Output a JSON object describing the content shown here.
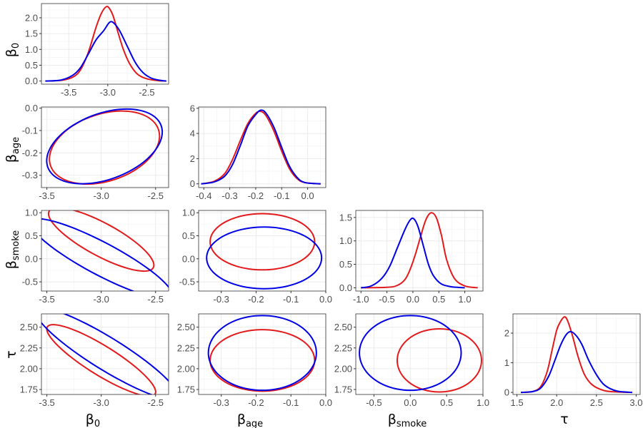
{
  "series_colors": {
    "red": "#e31a1c",
    "blue": "#0000e6"
  },
  "variables": [
    {
      "id": "b0",
      "label": "β",
      "sub": "0"
    },
    {
      "id": "bage",
      "label": "β",
      "sub": "age"
    },
    {
      "id": "bsmoke",
      "label": "β",
      "sub": "smoke"
    },
    {
      "id": "tau",
      "label": "τ",
      "sub": ""
    }
  ],
  "chart_data": [
    {
      "type": "line",
      "panel": "density-b0",
      "row": 0,
      "col": 0,
      "xlim": [
        -3.85,
        -2.22
      ],
      "ylim": [
        -0.1,
        2.45
      ],
      "xticks": [
        -3.5,
        -3.0,
        -2.5
      ],
      "xtick_labels": [
        "-3.5",
        "-3.0",
        "-2.5"
      ],
      "yticks": [
        0.0,
        0.5,
        1.0,
        1.5,
        2.0
      ],
      "ytick_labels": [
        "0.0",
        "0.5",
        "1.0",
        "1.5",
        "2.0"
      ],
      "series": [
        {
          "color": "red",
          "x": [
            -3.8,
            -3.6,
            -3.45,
            -3.35,
            -3.25,
            -3.15,
            -3.08,
            -3.02,
            -2.98,
            -2.93,
            -2.87,
            -2.8,
            -2.72,
            -2.62,
            -2.5,
            -2.35,
            -2.25
          ],
          "y": [
            0.0,
            0.02,
            0.12,
            0.35,
            0.9,
            1.7,
            2.15,
            2.35,
            2.3,
            2.05,
            1.55,
            1.0,
            0.55,
            0.22,
            0.07,
            0.01,
            0.0
          ]
        },
        {
          "color": "blue",
          "x": [
            -3.8,
            -3.6,
            -3.45,
            -3.35,
            -3.25,
            -3.15,
            -3.05,
            -2.98,
            -2.93,
            -2.85,
            -2.75,
            -2.65,
            -2.55,
            -2.45,
            -2.35,
            -2.25
          ],
          "y": [
            0.0,
            0.03,
            0.18,
            0.42,
            0.85,
            1.3,
            1.6,
            1.85,
            1.85,
            1.6,
            1.1,
            0.6,
            0.27,
            0.1,
            0.03,
            0.0
          ]
        }
      ]
    },
    {
      "type": "line",
      "panel": "density-bage",
      "row": 1,
      "col": 1,
      "xlim": [
        -0.42,
        0.07
      ],
      "ylim": [
        -0.3,
        6.1
      ],
      "xticks": [
        -0.4,
        -0.3,
        -0.2,
        -0.1,
        0.0
      ],
      "xtick_labels": [
        "-0.4",
        "-0.3",
        "-0.2",
        "-0.1",
        "0.0"
      ],
      "yticks": [
        0,
        2,
        4,
        6
      ],
      "ytick_labels": [
        "0",
        "2",
        "4",
        "6"
      ],
      "series": [
        {
          "color": "red",
          "x": [
            -0.41,
            -0.36,
            -0.32,
            -0.29,
            -0.26,
            -0.23,
            -0.2,
            -0.18,
            -0.16,
            -0.13,
            -0.1,
            -0.07,
            -0.04,
            -0.01,
            0.05
          ],
          "y": [
            0.0,
            0.2,
            0.8,
            1.9,
            3.4,
            4.8,
            5.6,
            5.75,
            5.4,
            4.2,
            2.6,
            1.2,
            0.4,
            0.1,
            0.0
          ]
        },
        {
          "color": "blue",
          "x": [
            -0.41,
            -0.36,
            -0.32,
            -0.29,
            -0.26,
            -0.23,
            -0.2,
            -0.18,
            -0.16,
            -0.13,
            -0.1,
            -0.07,
            -0.04,
            -0.01,
            0.05
          ],
          "y": [
            0.0,
            0.15,
            0.6,
            1.5,
            3.0,
            4.6,
            5.5,
            5.85,
            5.6,
            4.5,
            2.9,
            1.4,
            0.5,
            0.1,
            0.0
          ]
        }
      ]
    },
    {
      "type": "line",
      "panel": "density-bsmoke",
      "row": 2,
      "col": 2,
      "xlim": [
        -1.1,
        1.35
      ],
      "ylim": [
        -0.07,
        1.65
      ],
      "xticks": [
        -1.0,
        -0.5,
        0.0,
        0.5,
        1.0
      ],
      "xtick_labels": [
        "-1.0",
        "-0.5",
        "0.0",
        "0.5",
        "1.0"
      ],
      "yticks": [
        0.0,
        0.5,
        1.0,
        1.5
      ],
      "ytick_labels": [
        "0.0",
        "0.5",
        "1.0",
        "1.5"
      ],
      "series": [
        {
          "color": "red",
          "x": [
            -1.0,
            -0.5,
            -0.3,
            -0.15,
            -0.05,
            0.05,
            0.15,
            0.25,
            0.35,
            0.45,
            0.55,
            0.65,
            0.8,
            1.0,
            1.25
          ],
          "y": [
            0.0,
            0.01,
            0.05,
            0.18,
            0.4,
            0.72,
            1.1,
            1.45,
            1.6,
            1.5,
            1.12,
            0.6,
            0.2,
            0.04,
            0.0
          ]
        },
        {
          "color": "blue",
          "x": [
            -1.0,
            -0.8,
            -0.6,
            -0.45,
            -0.3,
            -0.15,
            -0.05,
            0.02,
            0.1,
            0.2,
            0.3,
            0.4,
            0.55,
            0.75,
            1.0
          ],
          "y": [
            0.0,
            0.04,
            0.2,
            0.45,
            0.85,
            1.25,
            1.45,
            1.47,
            1.3,
            0.9,
            0.5,
            0.25,
            0.08,
            0.02,
            0.0
          ]
        }
      ]
    },
    {
      "type": "line",
      "panel": "density-tau",
      "row": 3,
      "col": 3,
      "xlim": [
        1.45,
        3.05
      ],
      "ylim": [
        -0.07,
        2.65
      ],
      "xticks": [
        1.5,
        2.0,
        2.5,
        3.0
      ],
      "xtick_labels": [
        "1.5",
        "2.0",
        "2.5",
        "3.0"
      ],
      "yticks": [
        0,
        1,
        2
      ],
      "ytick_labels": [
        "0",
        "1",
        "2"
      ],
      "series": [
        {
          "color": "red",
          "x": [
            1.55,
            1.7,
            1.8,
            1.88,
            1.94,
            2.0,
            2.05,
            2.1,
            2.14,
            2.2,
            2.27,
            2.35,
            2.45,
            2.6,
            2.8,
            2.95
          ],
          "y": [
            0.0,
            0.03,
            0.2,
            0.7,
            1.4,
            2.1,
            2.4,
            2.55,
            2.4,
            1.9,
            1.2,
            0.6,
            0.25,
            0.06,
            0.01,
            0.0
          ]
        },
        {
          "color": "blue",
          "x": [
            1.55,
            1.7,
            1.8,
            1.9,
            1.98,
            2.05,
            2.12,
            2.18,
            2.25,
            2.32,
            2.4,
            2.5,
            2.6,
            2.75,
            2.95
          ],
          "y": [
            0.0,
            0.03,
            0.15,
            0.55,
            1.1,
            1.6,
            1.95,
            2.05,
            1.9,
            1.6,
            1.1,
            0.6,
            0.25,
            0.05,
            0.0
          ]
        }
      ]
    },
    {
      "type": "scatter",
      "panel": "contour-bage-b0",
      "row": 1,
      "col": 0,
      "xlim": [
        -3.55,
        -2.38
      ],
      "ylim": [
        -0.355,
        0.005
      ],
      "xticks": [
        -3.5,
        -3.0,
        -2.5
      ],
      "xtick_labels": [
        "-3.5",
        "-3.0",
        "-2.5"
      ],
      "yticks": [
        -0.3,
        -0.2,
        -0.1,
        0.0
      ],
      "ytick_labels": [
        "-0.3",
        "-0.2",
        "-0.1",
        "0.0"
      ],
      "ellipses": [
        {
          "color": "red",
          "center": [
            -2.97,
            -0.176
          ],
          "points": [
            [
              -2.47,
              -0.15
            ],
            [
              -2.89,
              -0.015
            ],
            [
              -3.47,
              -0.202
            ],
            [
              -3.05,
              -0.337
            ]
          ]
        },
        {
          "color": "blue",
          "center": [
            -2.97,
            -0.171
          ],
          "points": [
            [
              -2.45,
              -0.14
            ],
            [
              -2.86,
              -0.007
            ],
            [
              -3.49,
              -0.202
            ],
            [
              -3.08,
              -0.335
            ]
          ]
        }
      ]
    },
    {
      "type": "scatter",
      "panel": "contour-bsmoke-b0",
      "row": 2,
      "col": 0,
      "xlim": [
        -3.55,
        -2.38
      ],
      "ylim": [
        -0.7,
        1.05
      ],
      "xticks": [
        -3.5,
        -3.0,
        -2.5
      ],
      "xtick_labels": [
        "-3.5",
        "-3.0",
        "-2.5"
      ],
      "yticks": [
        -0.5,
        0.0,
        0.5,
        1.0
      ],
      "ytick_labels": [
        "-0.5",
        "0.0",
        "0.5",
        "1.0"
      ],
      "ellipses": [
        {
          "color": "red",
          "center": [
            -3.0,
            0.42
          ],
          "points": [
            [
              -2.55,
              0.05
            ],
            [
              -3.18,
              1.0
            ],
            [
              -3.45,
              0.79
            ],
            [
              -2.82,
              -0.16
            ]
          ]
        },
        {
          "color": "blue",
          "center": [
            -3.0,
            0.0
          ],
          "points": [
            [
              -2.45,
              -0.44
            ],
            [
              -3.35,
              0.75
            ],
            [
              -3.55,
              0.44
            ],
            [
              -2.65,
              -0.75
            ]
          ]
        }
      ]
    },
    {
      "type": "scatter",
      "panel": "contour-bsmoke-bage",
      "row": 2,
      "col": 1,
      "xlim": [
        -0.365,
        0.0
      ],
      "ylim": [
        -0.7,
        1.05
      ],
      "xticks": [
        -0.3,
        -0.2,
        -0.1,
        0.0
      ],
      "xtick_labels": [
        "-0.3",
        "-0.2",
        "-0.1",
        "0.0"
      ],
      "yticks": [
        -0.5,
        0.0,
        0.5,
        1.0
      ],
      "ytick_labels": [
        "-0.5",
        "0.0",
        "0.5",
        "1.0"
      ],
      "ellipses": [
        {
          "color": "red",
          "center": [
            -0.182,
            0.37
          ],
          "points": [
            [
              -0.032,
              0.37
            ],
            [
              -0.182,
              0.98
            ],
            [
              -0.332,
              0.37
            ],
            [
              -0.182,
              -0.24
            ]
          ]
        },
        {
          "color": "blue",
          "center": [
            -0.177,
            0.02
          ],
          "points": [
            [
              -0.012,
              0.02
            ],
            [
              -0.177,
              0.69
            ],
            [
              -0.342,
              0.02
            ],
            [
              -0.177,
              -0.65
            ]
          ]
        }
      ]
    },
    {
      "type": "scatter",
      "panel": "contour-tau-b0",
      "row": 3,
      "col": 0,
      "xlim": [
        -3.55,
        -2.38
      ],
      "ylim": [
        1.69,
        2.66
      ],
      "xticks": [
        -3.5,
        -3.0,
        -2.5
      ],
      "xtick_labels": [
        "-3.5",
        "-3.0",
        "-2.5"
      ],
      "yticks": [
        1.75,
        2.0,
        2.25,
        2.5
      ],
      "ytick_labels": [
        "1.75",
        "2.00",
        "2.25",
        "2.50"
      ],
      "ellipses": [
        {
          "color": "red",
          "center": [
            -3.0,
            2.1
          ],
          "points": [
            [
              -2.55,
              1.85
            ],
            [
              -3.22,
              2.45
            ],
            [
              -3.45,
              2.35
            ],
            [
              -2.78,
              1.75
            ]
          ]
        },
        {
          "color": "blue",
          "center": [
            -2.95,
            2.18
          ],
          "points": [
            [
              -2.4,
              1.88
            ],
            [
              -3.3,
              2.64
            ],
            [
              -3.5,
              2.48
            ],
            [
              -2.6,
              1.72
            ]
          ]
        }
      ]
    },
    {
      "type": "scatter",
      "panel": "contour-tau-bage",
      "row": 3,
      "col": 1,
      "xlim": [
        -0.365,
        0.0
      ],
      "ylim": [
        1.69,
        2.66
      ],
      "xticks": [
        -0.3,
        -0.2,
        -0.1,
        0.0
      ],
      "xtick_labels": [
        "-0.3",
        "-0.2",
        "-0.1",
        "0.0"
      ],
      "yticks": [
        1.75,
        2.0,
        2.25,
        2.5
      ],
      "ytick_labels": [
        "1.75",
        "2.00",
        "2.25",
        "2.50"
      ],
      "ellipses": [
        {
          "color": "red",
          "center": [
            -0.182,
            2.1
          ],
          "points": [
            [
              -0.032,
              2.1
            ],
            [
              -0.182,
              2.47
            ],
            [
              -0.332,
              2.1
            ],
            [
              -0.182,
              1.73
            ]
          ]
        },
        {
          "color": "blue",
          "center": [
            -0.182,
            2.19
          ],
          "points": [
            [
              -0.027,
              2.19
            ],
            [
              -0.182,
              2.64
            ],
            [
              -0.337,
              2.19
            ],
            [
              -0.182,
              1.74
            ]
          ]
        }
      ]
    },
    {
      "type": "scatter",
      "panel": "contour-tau-bsmoke",
      "row": 3,
      "col": 2,
      "xlim": [
        -0.75,
        1.0
      ],
      "ylim": [
        1.69,
        2.66
      ],
      "xticks": [
        -0.5,
        0.0,
        0.5,
        1.0
      ],
      "xtick_labels": [
        "-0.5",
        "0.0",
        "0.5",
        "1.0"
      ],
      "yticks": [
        1.75,
        2.0,
        2.25,
        2.5
      ],
      "ytick_labels": [
        "1.75",
        "2.00",
        "2.25",
        "2.50"
      ],
      "ellipses": [
        {
          "color": "red",
          "center": [
            0.4,
            2.1
          ],
          "points": [
            [
              0.98,
              2.1
            ],
            [
              0.4,
              2.48
            ],
            [
              -0.18,
              2.1
            ],
            [
              0.4,
              1.72
            ]
          ]
        },
        {
          "color": "blue",
          "center": [
            0.0,
            2.19
          ],
          "points": [
            [
              0.7,
              2.19
            ],
            [
              0.0,
              2.64
            ],
            [
              -0.7,
              2.19
            ],
            [
              0.0,
              1.74
            ]
          ]
        }
      ]
    }
  ]
}
